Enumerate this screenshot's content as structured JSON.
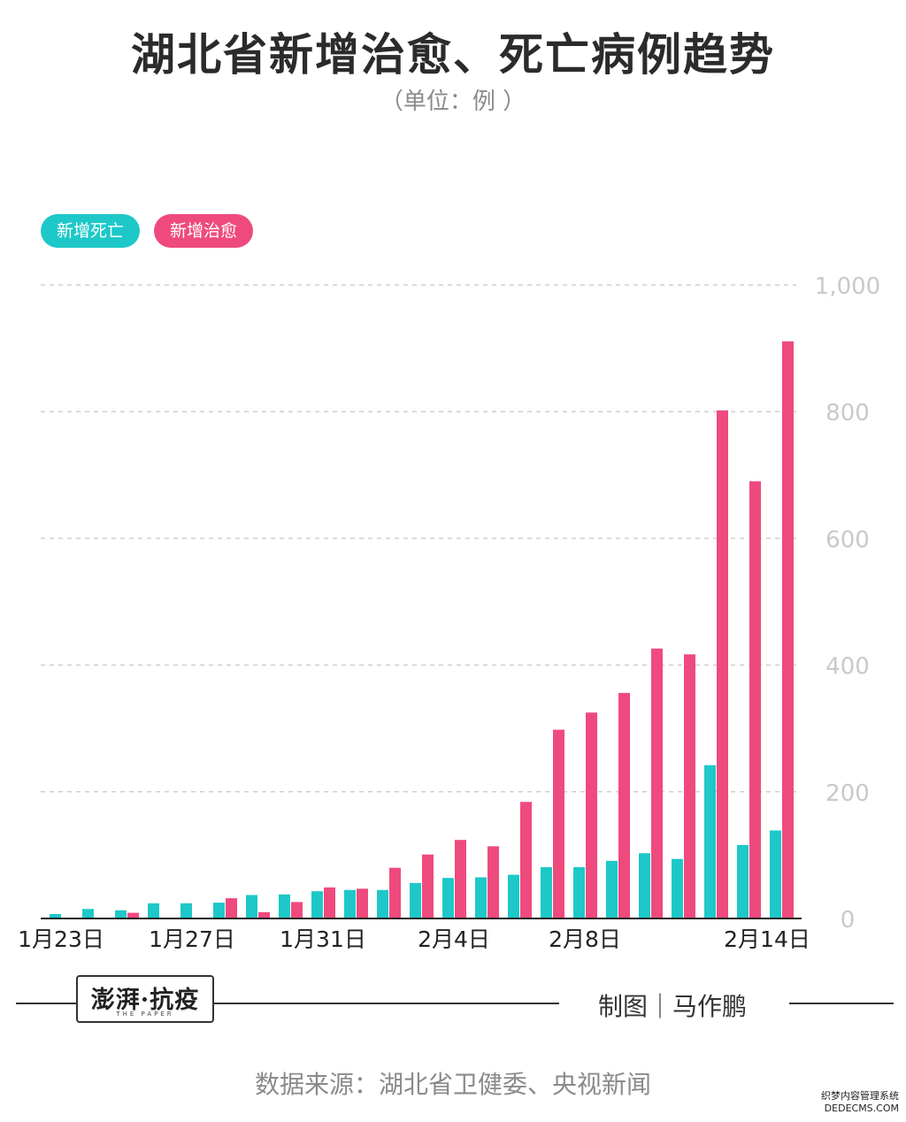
{
  "header": {
    "title": "湖北省新增治愈、死亡病例趋势",
    "subtitle": "（单位：例 ）"
  },
  "legend": [
    {
      "label": "新增死亡",
      "color": "#1ec8c8"
    },
    {
      "label": "新增治愈",
      "color": "#ef4a7e"
    }
  ],
  "chart_data": {
    "type": "bar",
    "x_tick_labels": [
      "1月23日",
      "1月27日",
      "1月31日",
      "2月4日",
      "2月8日",
      "2月14日"
    ],
    "y_tick_labels": [
      "0",
      "200",
      "400",
      "600",
      "800",
      "1,000"
    ],
    "ylim": [
      0,
      1000
    ],
    "y_ticks": [
      0,
      200,
      400,
      600,
      800,
      1000
    ],
    "grid": true,
    "legend_position": "top-left",
    "categories": [
      "1月23日",
      "1月24日",
      "1月25日",
      "1月26日",
      "1月27日",
      "1月28日",
      "1月29日",
      "1月30日",
      "1月31日",
      "2月1日",
      "2月2日",
      "2月3日",
      "2月4日",
      "2月5日",
      "2月6日",
      "2月7日",
      "2月8日",
      "2月9日",
      "2月10日",
      "2月11日",
      "2月12日",
      "2月13日",
      "2月14日"
    ],
    "series": [
      {
        "name": "新增死亡",
        "color": "#1ec8c8",
        "values": [
          7,
          15,
          13,
          24,
          24,
          25,
          37,
          38,
          43,
          45,
          45,
          56,
          64,
          65,
          69,
          81,
          81,
          91,
          103,
          94,
          242,
          116,
          139
        ]
      },
      {
        "name": "新增治愈",
        "color": "#ef4a7e",
        "values": [
          0,
          0,
          9,
          0,
          0,
          32,
          10,
          26,
          49,
          47,
          80,
          101,
          124,
          114,
          184,
          298,
          325,
          356,
          426,
          417,
          802,
          690,
          911
        ]
      }
    ]
  },
  "footer": {
    "logo_text": "澎湃·抗疫",
    "logo_sub": "THE PAPER",
    "credit": "制图｜马作鹏",
    "source": "数据来源：湖北省卫健委、央视新闻",
    "watermark_line1": "织梦内容管理系统",
    "watermark_line2": "DEDECMS.COM"
  }
}
